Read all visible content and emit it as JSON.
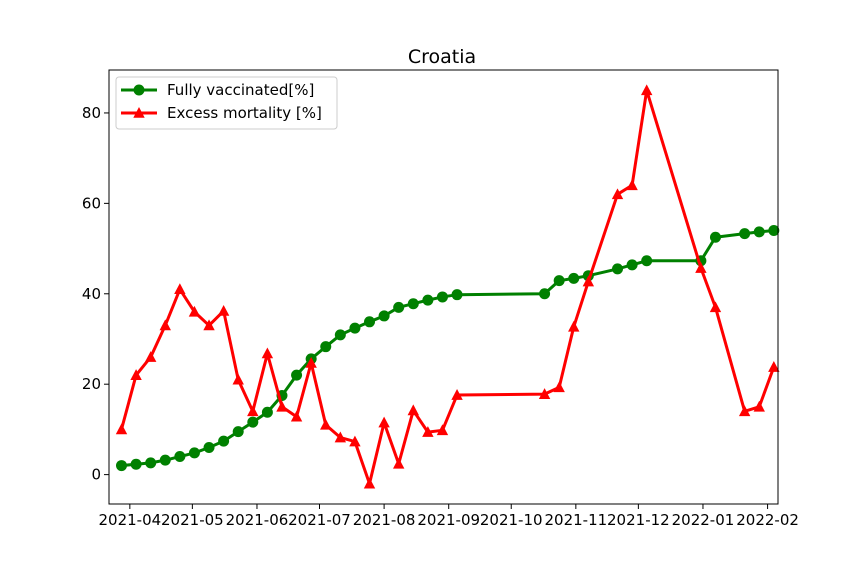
{
  "chart_data": {
    "type": "line",
    "title": "Croatia",
    "xlabel": "",
    "ylabel": "",
    "x_range": [
      "2021-03-22",
      "2022-02-06"
    ],
    "ylim": [
      -6.5,
      89.5
    ],
    "x_ticks": [
      "2021-04",
      "2021-05",
      "2021-06",
      "2021-07",
      "2021-08",
      "2021-09",
      "2021-10",
      "2021-11",
      "2021-12",
      "2022-01",
      "2022-02"
    ],
    "y_ticks": [
      0,
      20,
      40,
      60,
      80
    ],
    "grid": false,
    "legend": "upper-left",
    "series": [
      {
        "name": "Fully vaccinated[%]",
        "color": "#008000",
        "marker": "circle",
        "x": [
          "2021-03-28",
          "2021-04-04",
          "2021-04-11",
          "2021-04-18",
          "2021-04-25",
          "2021-05-02",
          "2021-05-09",
          "2021-05-16",
          "2021-05-23",
          "2021-05-30",
          "2021-06-06",
          "2021-06-13",
          "2021-06-20",
          "2021-06-27",
          "2021-07-04",
          "2021-07-11",
          "2021-07-18",
          "2021-07-25",
          "2021-08-01",
          "2021-08-08",
          "2021-08-15",
          "2021-08-22",
          "2021-08-29",
          "2021-09-05",
          "2021-10-17",
          "2021-10-24",
          "2021-10-31",
          "2021-11-07",
          "2021-11-21",
          "2021-11-28",
          "2021-12-05",
          "2021-12-31",
          "2022-01-07",
          "2022-01-21",
          "2022-01-28",
          "2022-02-04"
        ],
        "values": [
          2.0,
          2.3,
          2.6,
          3.2,
          4.0,
          4.8,
          6.0,
          7.4,
          9.5,
          11.6,
          13.8,
          17.5,
          22.0,
          25.6,
          28.3,
          30.9,
          32.4,
          33.8,
          35.1,
          37.0,
          37.8,
          38.6,
          39.3,
          39.8,
          40.0,
          42.9,
          43.4,
          44.0,
          45.5,
          46.4,
          47.3,
          47.3,
          52.5,
          53.3,
          53.7,
          54.0
        ]
      },
      {
        "name": "Excess mortality [%]",
        "color": "#ff0000",
        "marker": "triangle",
        "x": [
          "2021-03-28",
          "2021-04-04",
          "2021-04-11",
          "2021-04-18",
          "2021-04-25",
          "2021-05-02",
          "2021-05-09",
          "2021-05-16",
          "2021-05-23",
          "2021-05-30",
          "2021-06-06",
          "2021-06-13",
          "2021-06-20",
          "2021-06-27",
          "2021-07-04",
          "2021-07-11",
          "2021-07-18",
          "2021-07-25",
          "2021-08-01",
          "2021-08-08",
          "2021-08-15",
          "2021-08-22",
          "2021-08-29",
          "2021-09-05",
          "2021-10-17",
          "2021-10-24",
          "2021-10-31",
          "2021-11-07",
          "2021-11-21",
          "2021-11-28",
          "2021-12-05",
          "2021-12-31",
          "2022-01-07",
          "2022-01-21",
          "2022-01-28",
          "2022-02-04"
        ],
        "values": [
          10.0,
          22.0,
          26.0,
          33.0,
          41.0,
          36.0,
          33.0,
          36.2,
          21.0,
          14.0,
          26.8,
          15.0,
          12.8,
          24.7,
          11.0,
          8.2,
          7.3,
          -2.0,
          11.5,
          2.4,
          14.2,
          9.4,
          9.8,
          17.6,
          17.8,
          19.3,
          32.7,
          42.7,
          62.0,
          64.0,
          85.0,
          45.7,
          37.0,
          14.0,
          15.0,
          23.8
        ]
      }
    ]
  }
}
